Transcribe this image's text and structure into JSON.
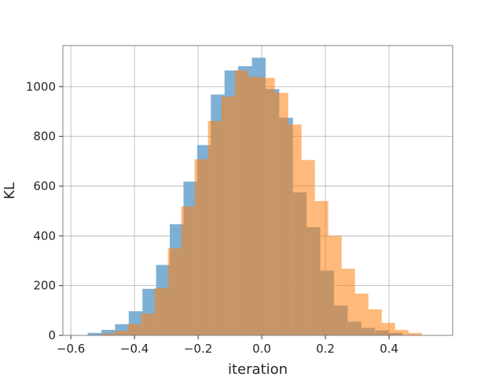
{
  "chart_data": {
    "type": "bar",
    "title": "",
    "xlabel": "iteration",
    "ylabel": "KL",
    "xlim": [
      -0.625,
      0.6
    ],
    "ylim": [
      0,
      1165
    ],
    "grid": true,
    "x_ticks": [
      -0.6,
      -0.4,
      -0.2,
      0.0,
      0.2,
      0.4
    ],
    "x_tick_labels": [
      "−0.6",
      "−0.4",
      "−0.2",
      "0.0",
      "0.2",
      "0.4"
    ],
    "y_ticks": [
      0,
      200,
      400,
      600,
      800,
      1000
    ],
    "y_tick_labels": [
      "0",
      "200",
      "400",
      "600",
      "800",
      "1000"
    ],
    "series": [
      {
        "color": "#7eb0d5",
        "opacity": 1.0,
        "bins": [
          [
            -0.547,
            -0.504,
            10
          ],
          [
            -0.504,
            -0.461,
            22
          ],
          [
            -0.461,
            -0.418,
            45
          ],
          [
            -0.418,
            -0.375,
            97
          ],
          [
            -0.375,
            -0.332,
            187
          ],
          [
            -0.332,
            -0.289,
            283
          ],
          [
            -0.289,
            -0.246,
            447
          ],
          [
            -0.246,
            -0.203,
            618
          ],
          [
            -0.203,
            -0.16,
            765
          ],
          [
            -0.16,
            -0.117,
            968
          ],
          [
            -0.117,
            -0.074,
            1065
          ],
          [
            -0.074,
            -0.031,
            1082
          ],
          [
            -0.031,
            0.012,
            1116
          ],
          [
            0.012,
            0.055,
            990
          ],
          [
            0.055,
            0.098,
            875
          ],
          [
            0.098,
            0.141,
            575
          ],
          [
            0.141,
            0.184,
            435
          ],
          [
            0.184,
            0.227,
            260
          ],
          [
            0.227,
            0.27,
            120
          ],
          [
            0.27,
            0.313,
            55
          ],
          [
            0.313,
            0.356,
            30
          ],
          [
            0.356,
            0.399,
            20
          ],
          [
            0.399,
            0.442,
            10
          ]
        ]
      },
      {
        "color": "#ff7f0e",
        "opacity": 0.55,
        "bins": [
          [
            -0.505,
            -0.463,
            8
          ],
          [
            -0.463,
            -0.421,
            18
          ],
          [
            -0.421,
            -0.379,
            45
          ],
          [
            -0.379,
            -0.337,
            88
          ],
          [
            -0.337,
            -0.295,
            190
          ],
          [
            -0.295,
            -0.253,
            350
          ],
          [
            -0.253,
            -0.211,
            518
          ],
          [
            -0.211,
            -0.169,
            708
          ],
          [
            -0.169,
            -0.127,
            862
          ],
          [
            -0.127,
            -0.085,
            960
          ],
          [
            -0.085,
            -0.043,
            1065
          ],
          [
            -0.043,
            -0.001,
            1040
          ],
          [
            -0.001,
            0.041,
            1035
          ],
          [
            0.041,
            0.083,
            975
          ],
          [
            0.083,
            0.125,
            848
          ],
          [
            0.125,
            0.167,
            705
          ],
          [
            0.167,
            0.209,
            540
          ],
          [
            0.209,
            0.251,
            400
          ],
          [
            0.251,
            0.293,
            268
          ],
          [
            0.293,
            0.335,
            168
          ],
          [
            0.335,
            0.377,
            105
          ],
          [
            0.377,
            0.419,
            50
          ],
          [
            0.419,
            0.461,
            22
          ],
          [
            0.461,
            0.503,
            10
          ]
        ]
      }
    ]
  }
}
